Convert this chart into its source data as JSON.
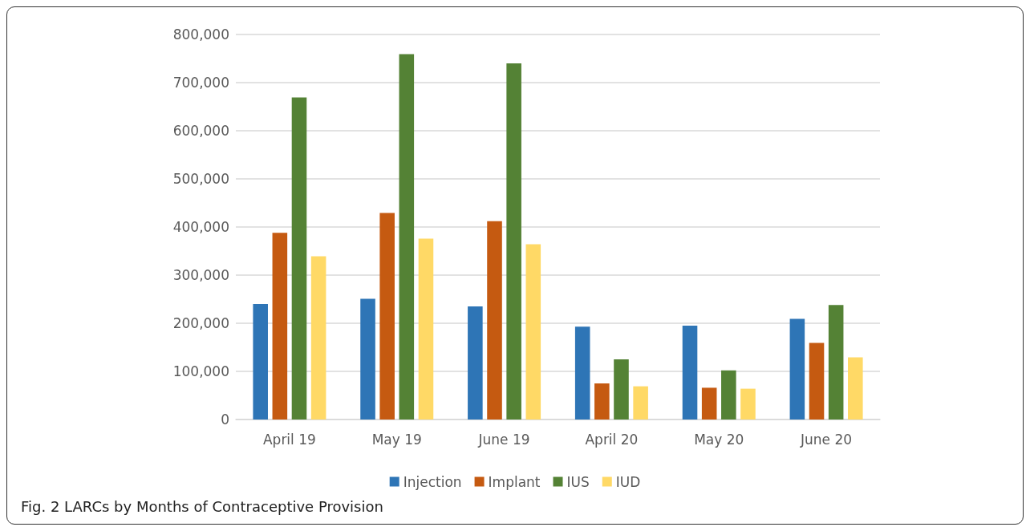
{
  "chart_data": {
    "type": "bar",
    "title": "Fig. 2 LARCs by Months of Contraceptive Provision",
    "categories": [
      "April 19",
      "May 19",
      "June 19",
      "April 20",
      "May 20",
      "June 20"
    ],
    "series": [
      {
        "name": "Injection",
        "color": "#2e75b6",
        "values": [
          240000,
          251000,
          235000,
          193000,
          195000,
          209000
        ]
      },
      {
        "name": "Implant",
        "color": "#c55a11",
        "values": [
          388000,
          429000,
          412000,
          75000,
          66000,
          159000
        ]
      },
      {
        "name": "IUS",
        "color": "#548235",
        "values": [
          669000,
          759000,
          740000,
          125000,
          102000,
          238000
        ]
      },
      {
        "name": "IUD",
        "color": "#ffd966",
        "values": [
          339000,
          376000,
          364000,
          69000,
          64000,
          129000
        ]
      }
    ],
    "ylim": [
      0,
      800000
    ],
    "yticks": [
      0,
      {
        "value": 100000,
        "label": "100,000"
      },
      {
        "value": 200000,
        "label": "200,000"
      },
      {
        "value": 300000,
        "label": "300,000"
      },
      {
        "value": 400000,
        "label": "400,000"
      },
      {
        "value": 500000,
        "label": "500,000"
      },
      {
        "value": 600000,
        "label": "600,000"
      },
      {
        "value": 700000,
        "label": "700,000"
      },
      {
        "value": 800000,
        "label": "800,000"
      }
    ],
    "grid": "y",
    "legend": "bottom"
  }
}
